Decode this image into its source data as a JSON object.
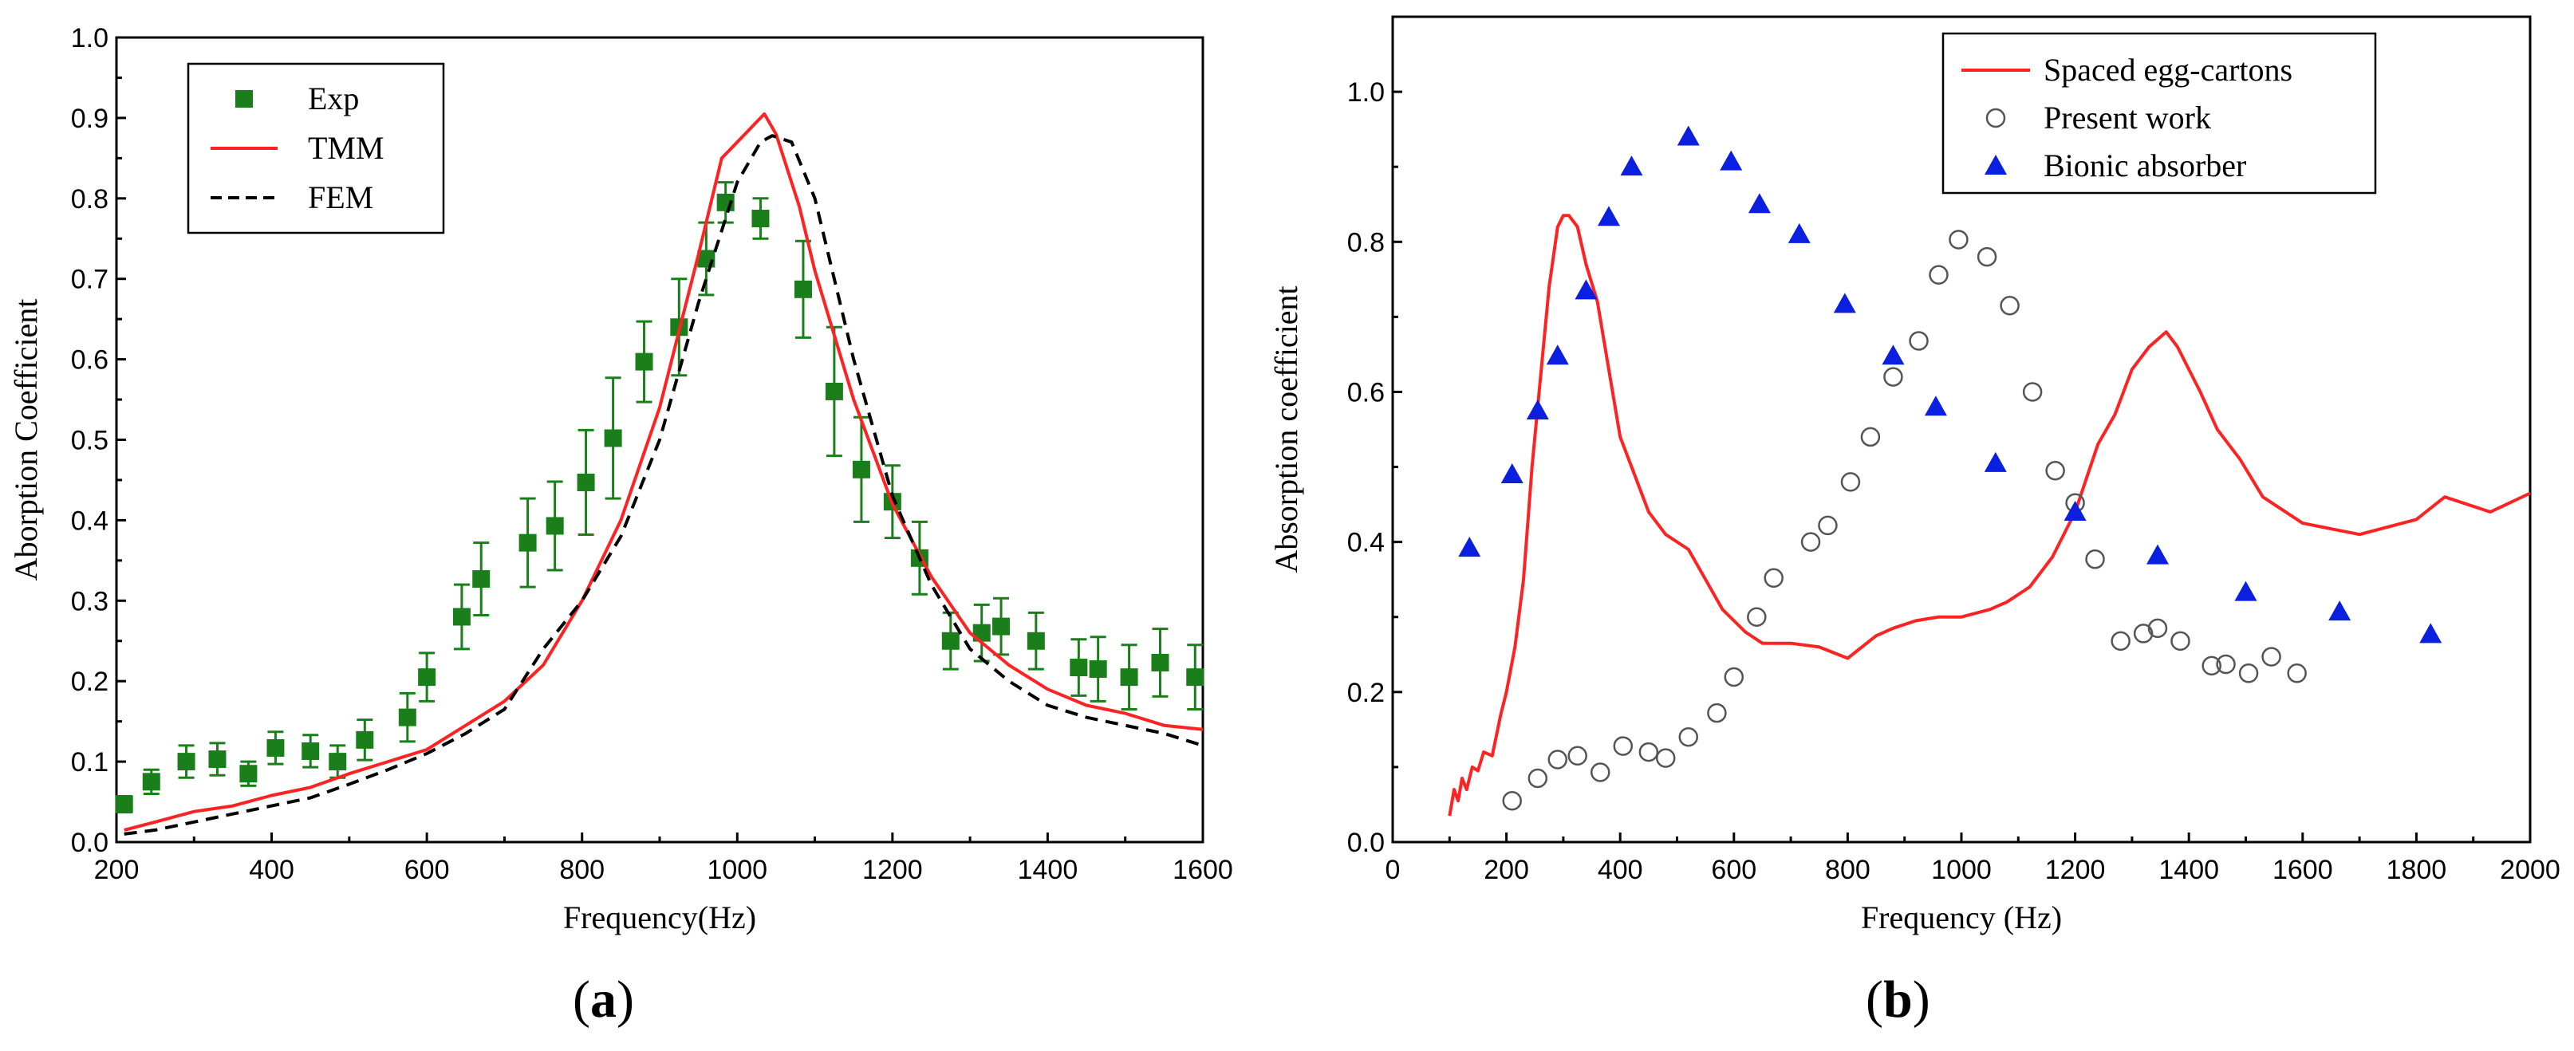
{
  "panels": [
    {
      "label_open": "(",
      "label_letter": "a",
      "label_close": ")"
    },
    {
      "label_open": "(",
      "label_letter": "b",
      "label_close": ")"
    }
  ],
  "chart_data": [
    {
      "type": "line",
      "xlabel": "Frequency(Hz)",
      "ylabel": "Aborption Coefficient",
      "xlim": [
        200,
        1600
      ],
      "ylim": [
        0,
        1.0
      ],
      "xticks": [
        200,
        400,
        600,
        800,
        1000,
        1200,
        1400,
        1600
      ],
      "yticks": [
        0.0,
        0.1,
        0.2,
        0.3,
        0.4,
        0.5,
        0.6,
        0.7,
        0.8,
        0.9,
        1.0
      ],
      "ytick_labels": [
        "0.0",
        "0.1",
        "0.2",
        "0.3",
        "0.4",
        "0.5",
        "0.6",
        "0.7",
        "0.8",
        "0.9",
        "1.0"
      ],
      "legend_position": "top-left",
      "colors": {
        "exp": "#1a7f1a",
        "tmm": "#ff2222",
        "fem": "#000000"
      },
      "series": [
        {
          "name": "Exp",
          "style": "square-markers-with-error-bars",
          "x": [
            210,
            245,
            290,
            330,
            370,
            405,
            450,
            485,
            520,
            575,
            600,
            645,
            670,
            730,
            765,
            805,
            840,
            880,
            925,
            960,
            985,
            1030,
            1085,
            1125,
            1160,
            1200,
            1235,
            1275,
            1315,
            1340,
            1385,
            1440,
            1465,
            1505,
            1545,
            1590
          ],
          "y": [
            0.047,
            0.075,
            0.1,
            0.103,
            0.085,
            0.117,
            0.113,
            0.1,
            0.127,
            0.155,
            0.205,
            0.28,
            0.327,
            0.372,
            0.393,
            0.447,
            0.502,
            0.597,
            0.64,
            0.725,
            0.795,
            0.775,
            0.687,
            0.56,
            0.463,
            0.423,
            0.353,
            0.25,
            0.26,
            0.268,
            0.25,
            0.217,
            0.215,
            0.205,
            0.223,
            0.205
          ],
          "err": [
            0.01,
            0.015,
            0.02,
            0.02,
            0.015,
            0.02,
            0.02,
            0.02,
            0.025,
            0.03,
            0.03,
            0.04,
            0.045,
            0.055,
            0.055,
            0.065,
            0.075,
            0.05,
            0.06,
            0.045,
            0.025,
            0.025,
            0.06,
            0.08,
            0.065,
            0.045,
            0.045,
            0.035,
            0.035,
            0.035,
            0.035,
            0.035,
            0.04,
            0.04,
            0.042,
            0.04
          ]
        },
        {
          "name": "TMM",
          "style": "solid",
          "x": [
            210,
            250,
            300,
            350,
            400,
            450,
            500,
            550,
            600,
            650,
            700,
            750,
            800,
            850,
            900,
            950,
            980,
            1000,
            1020,
            1035,
            1050,
            1080,
            1100,
            1150,
            1200,
            1250,
            1300,
            1350,
            1400,
            1450,
            1500,
            1550,
            1600
          ],
          "y": [
            0.015,
            0.025,
            0.038,
            0.045,
            0.058,
            0.068,
            0.085,
            0.1,
            0.115,
            0.145,
            0.175,
            0.22,
            0.3,
            0.4,
            0.54,
            0.73,
            0.85,
            0.87,
            0.89,
            0.905,
            0.88,
            0.79,
            0.71,
            0.55,
            0.42,
            0.33,
            0.26,
            0.22,
            0.19,
            0.17,
            0.16,
            0.145,
            0.14
          ]
        },
        {
          "name": "FEM",
          "style": "dashed",
          "x": [
            210,
            250,
            300,
            350,
            400,
            450,
            500,
            550,
            600,
            650,
            700,
            750,
            800,
            850,
            900,
            950,
            1000,
            1030,
            1045,
            1070,
            1100,
            1150,
            1200,
            1250,
            1300,
            1350,
            1400,
            1450,
            1500,
            1550,
            1600
          ],
          "y": [
            0.01,
            0.015,
            0.025,
            0.035,
            0.045,
            0.055,
            0.072,
            0.09,
            0.11,
            0.135,
            0.165,
            0.24,
            0.3,
            0.38,
            0.5,
            0.67,
            0.82,
            0.87,
            0.878,
            0.87,
            0.8,
            0.6,
            0.43,
            0.32,
            0.24,
            0.2,
            0.17,
            0.155,
            0.145,
            0.135,
            0.12
          ]
        }
      ]
    },
    {
      "type": "scatter",
      "xlabel": "Frequency (Hz)",
      "ylabel": "Absorption coefficient",
      "xlim": [
        0,
        2000
      ],
      "ylim": [
        0,
        1.1
      ],
      "xticks": [
        0,
        200,
        400,
        600,
        800,
        1000,
        1200,
        1400,
        1600,
        1800,
        2000
      ],
      "yticks": [
        0.0,
        0.2,
        0.4,
        0.6,
        0.8,
        1.0
      ],
      "ytick_labels": [
        "0.0",
        "0.2",
        "0.4",
        "0.6",
        "0.8",
        "1.0"
      ],
      "legend_position": "top-right",
      "colors": {
        "egg": "#ff2222",
        "present": "#555555",
        "bionic": "#0a1fe0"
      },
      "series": [
        {
          "name": "Spaced egg-cartons",
          "style": "solid",
          "x": [
            100,
            108,
            115,
            122,
            130,
            140,
            150,
            160,
            175,
            190,
            200,
            215,
            230,
            245,
            260,
            275,
            290,
            300,
            310,
            325,
            340,
            360,
            380,
            400,
            420,
            450,
            480,
            520,
            550,
            580,
            620,
            650,
            700,
            750,
            800,
            850,
            880,
            920,
            960,
            1000,
            1050,
            1080,
            1120,
            1160,
            1200,
            1240,
            1270,
            1300,
            1330,
            1360,
            1380,
            1420,
            1450,
            1490,
            1530,
            1600,
            1700,
            1800,
            1850,
            1930,
            2000
          ],
          "y": [
            0.035,
            0.07,
            0.055,
            0.085,
            0.07,
            0.1,
            0.095,
            0.12,
            0.115,
            0.17,
            0.2,
            0.26,
            0.35,
            0.5,
            0.62,
            0.74,
            0.82,
            0.835,
            0.835,
            0.82,
            0.77,
            0.72,
            0.63,
            0.54,
            0.5,
            0.44,
            0.41,
            0.39,
            0.35,
            0.31,
            0.28,
            0.265,
            0.265,
            0.26,
            0.245,
            0.275,
            0.285,
            0.295,
            0.3,
            0.3,
            0.31,
            0.32,
            0.34,
            0.38,
            0.44,
            0.53,
            0.57,
            0.63,
            0.66,
            0.68,
            0.66,
            0.6,
            0.55,
            0.51,
            0.46,
            0.425,
            0.41,
            0.43,
            0.46,
            0.44,
            0.465
          ]
        },
        {
          "name": "Present work",
          "style": "open-circle",
          "x": [
            210,
            255,
            290,
            325,
            365,
            405,
            450,
            480,
            520,
            570,
            600,
            640,
            670,
            735,
            765,
            805,
            840,
            880,
            925,
            960,
            995,
            1045,
            1085,
            1125,
            1165,
            1200,
            1235,
            1280,
            1320,
            1345,
            1385,
            1440,
            1465,
            1505,
            1545,
            1590
          ],
          "y": [
            0.055,
            0.085,
            0.11,
            0.115,
            0.093,
            0.128,
            0.12,
            0.112,
            0.14,
            0.172,
            0.22,
            0.3,
            0.352,
            0.4,
            0.422,
            0.48,
            0.54,
            0.62,
            0.668,
            0.756,
            0.803,
            0.78,
            0.715,
            0.6,
            0.495,
            0.452,
            0.377,
            0.268,
            0.278,
            0.285,
            0.268,
            0.235,
            0.237,
            0.225,
            0.247,
            0.225
          ]
        },
        {
          "name": "Bionic absorber",
          "style": "filled-triangle",
          "x": [
            135,
            210,
            255,
            290,
            340,
            380,
            420,
            520,
            595,
            645,
            715,
            795,
            880,
            955,
            1060,
            1200,
            1345,
            1500,
            1665,
            1825
          ],
          "y": [
            0.392,
            0.49,
            0.575,
            0.648,
            0.735,
            0.833,
            0.9,
            0.94,
            0.907,
            0.85,
            0.81,
            0.717,
            0.648,
            0.58,
            0.505,
            0.44,
            0.382,
            0.333,
            0.307,
            0.277
          ]
        }
      ]
    }
  ]
}
